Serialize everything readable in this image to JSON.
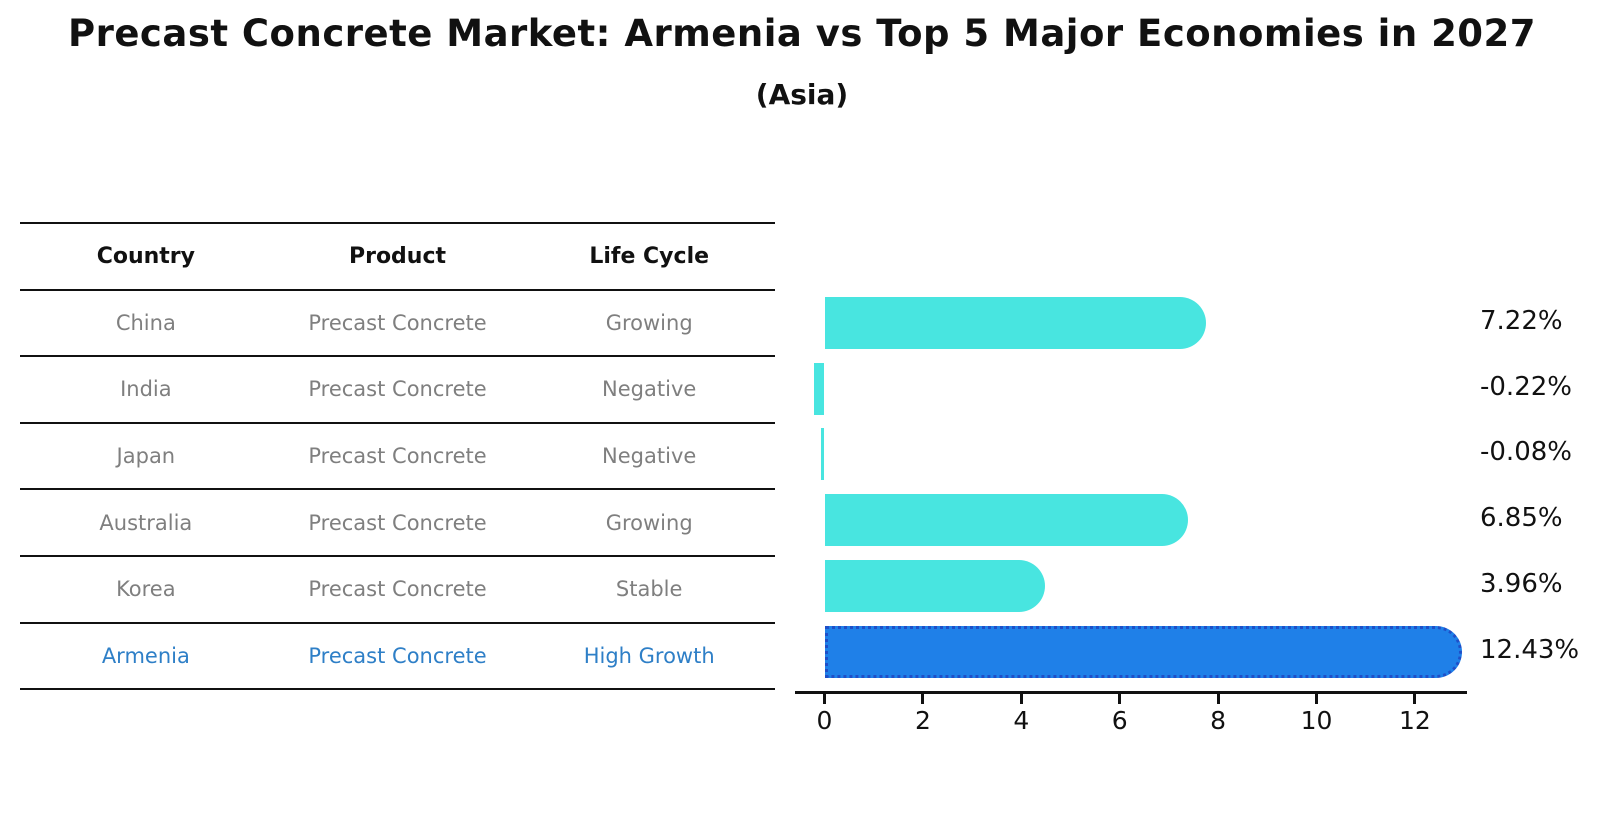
{
  "header": {
    "title": "Precast Concrete Market: Armenia vs Top 5 Major Economies in 2027",
    "subtitle": "(Asia)"
  },
  "table": {
    "columns": [
      "Country",
      "Product",
      "Life Cycle"
    ],
    "rows": [
      {
        "country": "China",
        "product": "Precast Concrete",
        "life_cycle": "Growing",
        "highlight": false
      },
      {
        "country": "India",
        "product": "Precast Concrete",
        "life_cycle": "Negative",
        "highlight": false
      },
      {
        "country": "Japan",
        "product": "Precast Concrete",
        "life_cycle": "Negative",
        "highlight": false
      },
      {
        "country": "Australia",
        "product": "Precast Concrete",
        "life_cycle": "Growing",
        "highlight": false
      },
      {
        "country": "Korea",
        "product": "Precast Concrete",
        "life_cycle": "Stable",
        "highlight": false
      },
      {
        "country": "Armenia",
        "product": "Precast Concrete",
        "life_cycle": "High Growth",
        "highlight": true
      }
    ]
  },
  "chart_data": {
    "type": "bar",
    "orientation": "horizontal",
    "title": "Precast Concrete Market: Armenia vs Top 5 Major Economies in 2027",
    "subtitle": "(Asia)",
    "categories": [
      "China",
      "India",
      "Japan",
      "Australia",
      "Korea",
      "Armenia"
    ],
    "values": [
      7.22,
      -0.22,
      -0.08,
      6.85,
      3.96,
      12.43
    ],
    "value_labels": [
      "7.22%",
      "-0.22%",
      "-0.08%",
      "6.85%",
      "3.96%",
      "12.43%"
    ],
    "highlight_index": 5,
    "x_ticks": [
      0,
      2,
      4,
      6,
      8,
      10,
      12
    ],
    "xlim": [
      -0.6,
      13.05
    ],
    "grid": false,
    "legend": false,
    "unit": "%"
  },
  "colors": {
    "bar": "#48E5E0",
    "highlight_bar": "#1F80E8",
    "highlight_border": "#1F4FC8",
    "axis": "#111111",
    "row_text": "#7f7f7f",
    "highlight_text": "#2e7fc7",
    "background": "#ffffff"
  }
}
